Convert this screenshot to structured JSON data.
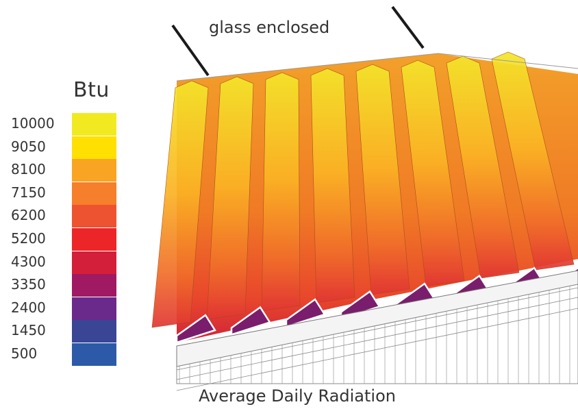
{
  "legend": {
    "title": "Btu",
    "entries": [
      {
        "label": "10000",
        "color": "#f2ea20"
      },
      {
        "label": "9050",
        "color": "#ffe000"
      },
      {
        "label": "8100",
        "color": "#faa423"
      },
      {
        "label": "7150",
        "color": "#f57f2a"
      },
      {
        "label": "6200",
        "color": "#ee5331"
      },
      {
        "label": "5200",
        "color": "#ec2628"
      },
      {
        "label": "4300",
        "color": "#d41f3a"
      },
      {
        "label": "3350",
        "color": "#9f1a63"
      },
      {
        "label": "2400",
        "color": "#6a2a8c"
      },
      {
        "label": "1450",
        "color": "#3b4596"
      },
      {
        "label": "500",
        "color": "#2d5aa8"
      }
    ]
  },
  "annotation": {
    "label": "glass enclosed"
  },
  "caption": "Average Daily Radiation"
}
